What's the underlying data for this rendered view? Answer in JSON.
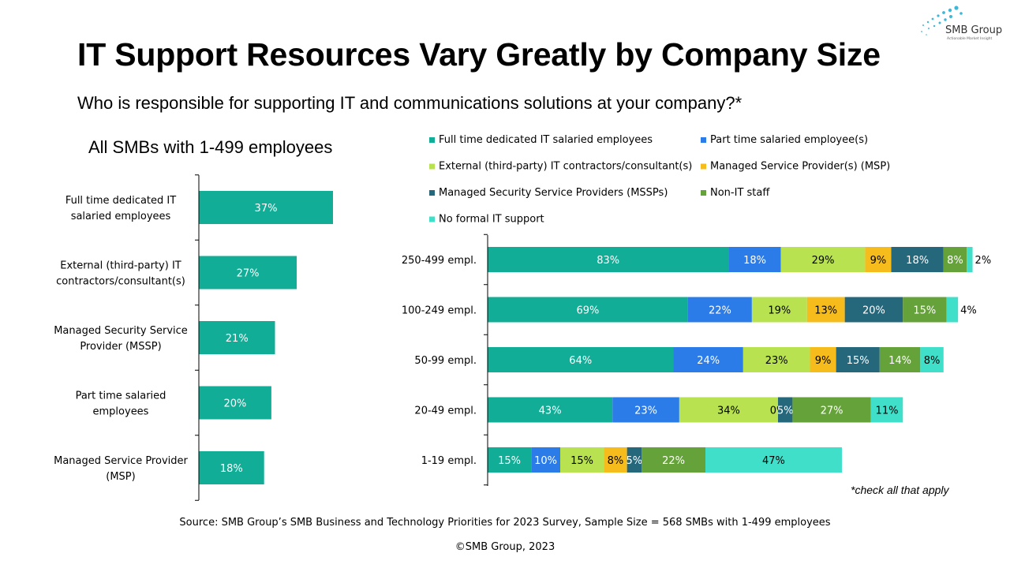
{
  "header": {
    "title": "IT Support Resources Vary Greatly by Company Size",
    "subtitle": "Who is responsible for supporting IT and communications solutions at your company?*"
  },
  "logo": {
    "text": "SMB Group",
    "tagline": "Actionable Market Insight"
  },
  "colors": {
    "full_time": "#12ad96",
    "part_time": "#2b7ce9",
    "external": "#b8e24f",
    "msp": "#f6bc1b",
    "mssp": "#25677b",
    "non_it": "#66a23a",
    "no_formal": "#3fdfc9",
    "axis": "#000000"
  },
  "footnote": "*check all that apply",
  "source": "Source: SMB Group’s SMB Business and Technology Priorities for 2023 Survey, Sample Size = 568 SMBs with 1-499 employees",
  "copyright": "©SMB Group, 2023",
  "chart_data": [
    {
      "type": "bar",
      "orientation": "horizontal",
      "title": "All SMBs with 1-499 employees",
      "categories": [
        "Full time dedicated IT salaried employees",
        "External (third-party) IT contractors/consultant(s)",
        "Managed Security Service Provider (MSSP)",
        "Part time salaried employees",
        "Managed Service Provider (MSP)"
      ],
      "category_lines": [
        [
          "Full time dedicated IT",
          "salaried employees"
        ],
        [
          "External (third-party) IT",
          "contractors/consultant(s)"
        ],
        [
          "Managed Security Service",
          "Provider (MSSP)"
        ],
        [
          "Part time salaried",
          "employees"
        ],
        [
          "Managed Service Provider",
          "(MSP)"
        ]
      ],
      "values": [
        37,
        27,
        21,
        20,
        18
      ],
      "labels": [
        "37%",
        "27%",
        "21%",
        "20%",
        "18%"
      ],
      "unit": "%",
      "color_key": "full_time",
      "xlim": [
        0,
        100
      ]
    },
    {
      "type": "bar",
      "orientation": "horizontal",
      "stacked": true,
      "categories": [
        "250-499 empl.",
        "100-249 empl.",
        "50-99 empl.",
        "20-49 empl.",
        "1-19 empl."
      ],
      "unit": "%",
      "legend_position": "top",
      "xlim": [
        0,
        180
      ],
      "series": [
        {
          "name": "Full time dedicated IT salaried employees",
          "color_key": "full_time",
          "values": [
            83,
            69,
            64,
            43,
            15
          ],
          "labels": [
            "83%",
            "69%",
            "64%",
            "43%",
            "15%"
          ]
        },
        {
          "name": "Part time salaried employee(s)",
          "color_key": "part_time",
          "values": [
            18,
            22,
            24,
            23,
            10
          ],
          "labels": [
            "18%",
            "22%",
            "24%",
            "23%",
            "10%"
          ]
        },
        {
          "name": "External (third-party) IT contractors/consultant(s)",
          "color_key": "external",
          "values": [
            29,
            19,
            23,
            34,
            15
          ],
          "labels": [
            "29%",
            "19%",
            "23%",
            "34%",
            "15%"
          ]
        },
        {
          "name": "Managed Service Provider(s) (MSP)",
          "color_key": "msp",
          "values": [
            9,
            13,
            9,
            0,
            8
          ],
          "labels": [
            "9%",
            "13%",
            "9%",
            "0%",
            "8%"
          ]
        },
        {
          "name": "Managed Security Service Providers (MSSPs)",
          "color_key": "mssp",
          "values": [
            18,
            20,
            15,
            5,
            5
          ],
          "labels": [
            "18%",
            "20%",
            "15%",
            "5%",
            "5%"
          ]
        },
        {
          "name": "Non-IT staff",
          "color_key": "non_it",
          "values": [
            8,
            15,
            14,
            27,
            22
          ],
          "labels": [
            "8%",
            "15%",
            "14%",
            "27%",
            "22%"
          ]
        },
        {
          "name": "No formal IT support",
          "color_key": "no_formal",
          "values": [
            2,
            4,
            8,
            11,
            47
          ],
          "labels": [
            "2%",
            "4%",
            "8%",
            "11%",
            "47%"
          ]
        }
      ]
    }
  ]
}
